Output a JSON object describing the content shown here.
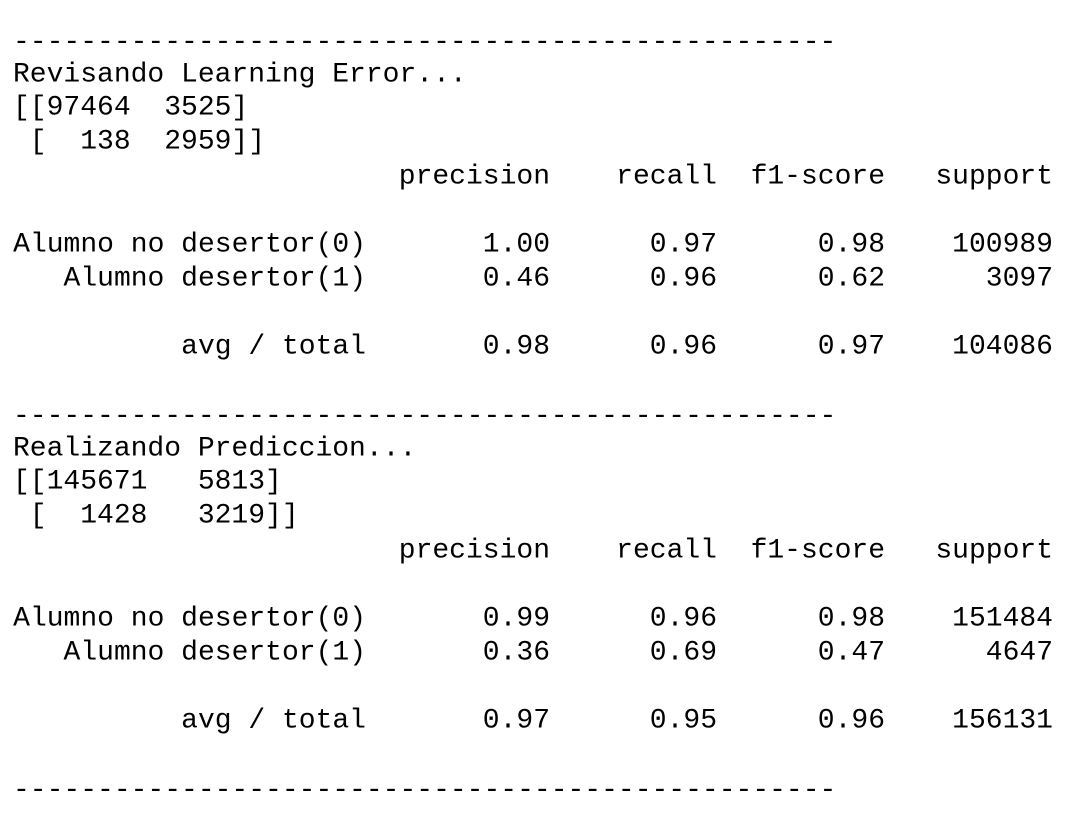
{
  "sections": [
    {
      "separator": "-------------------------------------------------",
      "title": "Revisando Learning Error...",
      "matrix": [
        "[[97464  3525]",
        " [  138  2959]]"
      ],
      "report": {
        "columns": [
          "precision",
          "recall",
          "f1-score",
          "support"
        ],
        "rows": [
          {
            "label": "Alumno no desertor(0)",
            "values": [
              "1.00",
              "0.97",
              "0.98",
              "100989"
            ]
          },
          {
            "label": "Alumno desertor(1)",
            "values": [
              "0.46",
              "0.96",
              "0.62",
              "3097"
            ]
          }
        ],
        "total": {
          "label": "avg / total",
          "values": [
            "0.98",
            "0.96",
            "0.97",
            "104086"
          ]
        }
      }
    },
    {
      "separator": "-------------------------------------------------",
      "title": "Realizando Prediccion...",
      "matrix": [
        "[[145671   5813]",
        " [  1428   3219]]"
      ],
      "report": {
        "columns": [
          "precision",
          "recall",
          "f1-score",
          "support"
        ],
        "rows": [
          {
            "label": "Alumno no desertor(0)",
            "values": [
              "0.99",
              "0.96",
              "0.98",
              "151484"
            ]
          },
          {
            "label": "Alumno desertor(1)",
            "values": [
              "0.36",
              "0.69",
              "0.47",
              "4647"
            ]
          }
        ],
        "total": {
          "label": "avg / total",
          "values": [
            "0.97",
            "0.95",
            "0.96",
            "156131"
          ]
        }
      }
    }
  ],
  "final_separator": "-------------------------------------------------"
}
